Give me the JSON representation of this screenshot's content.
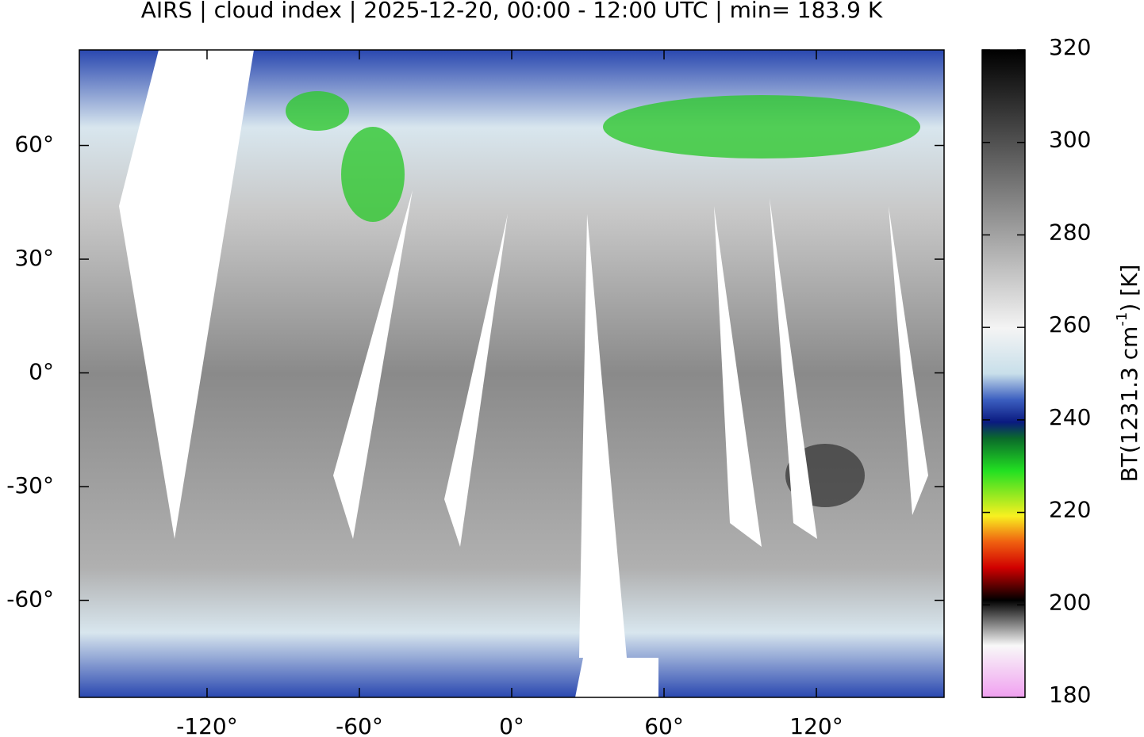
{
  "chart_data": {
    "type": "map",
    "title": "AIRS | cloud index | 2025-12-20, 00:00 - 12:00 UTC | min= 183.9 K",
    "xlim": [
      -170.3,
      170.3
    ],
    "ylim": [
      -85.6,
      85.2
    ],
    "xticks": [
      {
        "value": -120,
        "label": "-120°"
      },
      {
        "value": -60,
        "label": "-60°"
      },
      {
        "value": 0,
        "label": "0°"
      },
      {
        "value": 60,
        "label": "60°"
      },
      {
        "value": 120,
        "label": "120°"
      }
    ],
    "yticks": [
      {
        "value": -60,
        "label": "-60°"
      },
      {
        "value": -30,
        "label": "-30°"
      },
      {
        "value": 0,
        "label": "0°"
      },
      {
        "value": 30,
        "label": "30°"
      },
      {
        "value": 60,
        "label": "60°"
      }
    ],
    "colorbar": {
      "lim": [
        180,
        320
      ],
      "ticks": [
        180,
        200,
        220,
        240,
        260,
        280,
        300,
        320
      ],
      "label": {
        "text": "BT(1231.3 cm",
        "superscript": "-1",
        "suffix": ") [K]"
      }
    }
  }
}
